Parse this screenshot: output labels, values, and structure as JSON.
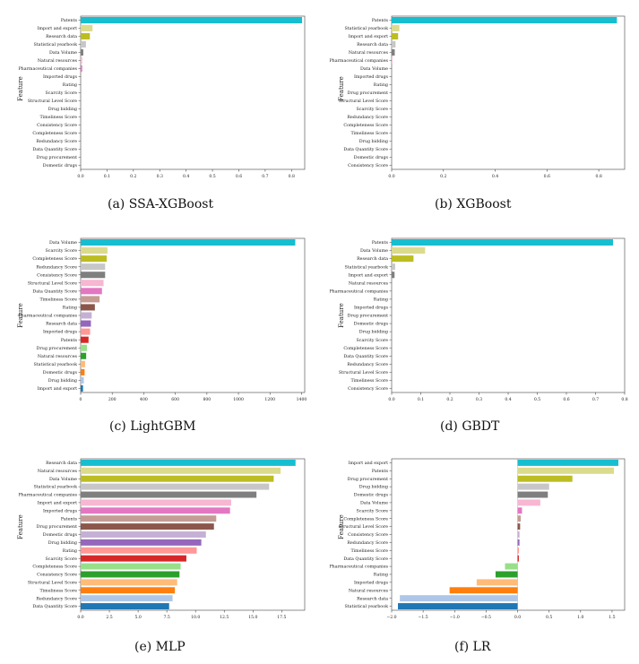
{
  "colors": {
    "cyan": "#17becf",
    "olive_light": "#dbdb8d",
    "olive": "#bcbd22",
    "grey_light": "#c7c7c7",
    "grey": "#7f7f7f",
    "pink_light": "#f7b6d2",
    "pink": "#e377c2",
    "brown_light": "#c49c94",
    "brown": "#8c564b",
    "purple_light": "#c5b0d5",
    "purple": "#9467bd",
    "red_light": "#ff9896",
    "red": "#d62728",
    "green_light": "#98df8a",
    "green": "#2ca02c",
    "orange_light": "#ffbb78",
    "orange": "#ff7f0e",
    "blue_light": "#aec7e8",
    "blue": "#1f77b4"
  },
  "chart_data": [
    {
      "id": "a",
      "type": "bar",
      "orientation": "horizontal",
      "caption": "(a) SSA-XGBoost",
      "ylabel": "Feature",
      "xlim": [
        0,
        0.85
      ],
      "xticks": [
        0.0,
        0.1,
        0.2,
        0.3,
        0.4,
        0.5,
        0.6,
        0.7,
        0.8
      ],
      "xtick_labels": [
        "0.0",
        "0.1",
        "0.2",
        "0.3",
        "0.4",
        "0.5",
        "0.6",
        "0.7",
        "0.8"
      ],
      "categories": [
        "Patents",
        "Import and export",
        "Research data",
        "Statistical yearbook",
        "Data Volume",
        "Natural resources",
        "Pharmaceutical companies",
        "Imported drugs",
        "Rating",
        "Scarcity Score",
        "Structural Level Score",
        "Drug bidding",
        "Timeliness Score",
        "Consistency Score",
        "Completeness Score",
        "Redundancy Score",
        "Data Quantity Score",
        "Drug procurement",
        "Domestic drugs"
      ],
      "values": [
        0.84,
        0.045,
        0.035,
        0.02,
        0.01,
        0.006,
        0.006,
        0,
        0,
        0,
        0,
        0,
        0,
        0,
        0,
        0,
        0,
        0,
        0
      ],
      "bar_colors": [
        "cyan",
        "olive_light",
        "olive",
        "grey_light",
        "grey",
        "pink_light",
        "pink",
        "brown_light",
        "brown",
        "purple_light",
        "purple",
        "red_light",
        "red",
        "green_light",
        "green",
        "orange_light",
        "orange",
        "blue_light",
        "blue"
      ]
    },
    {
      "id": "b",
      "type": "bar",
      "orientation": "horizontal",
      "caption": "(b) XGBoost",
      "ylabel": "Feature",
      "xlim": [
        0,
        0.9
      ],
      "xticks": [
        0.0,
        0.2,
        0.4,
        0.6,
        0.8
      ],
      "xtick_labels": [
        "0.0",
        "0.2",
        "0.4",
        "0.6",
        "0.8"
      ],
      "categories": [
        "Patents",
        "Statistical yearbook",
        "Import and export",
        "Research data",
        "Natural resources",
        "Pharmaceutical companies",
        "Data Volume",
        "Imported drugs",
        "Rating",
        "Drug procurement",
        "Structural Level Score",
        "Scarcity Score",
        "Redundancy Score",
        "Completeness Score",
        "Timeliness Score",
        "Drug bidding",
        "Data Quantity Score",
        "Domestic drugs",
        "Consistency Score"
      ],
      "values": [
        0.87,
        0.03,
        0.025,
        0.015,
        0.012,
        0.003,
        0,
        0,
        0,
        0,
        0,
        0,
        0,
        0,
        0,
        0,
        0,
        0,
        0
      ],
      "bar_colors": [
        "cyan",
        "olive_light",
        "olive",
        "grey_light",
        "grey",
        "pink_light",
        "pink",
        "brown_light",
        "brown",
        "purple_light",
        "purple",
        "red_light",
        "red",
        "green_light",
        "green",
        "orange_light",
        "orange",
        "blue_light",
        "blue"
      ]
    },
    {
      "id": "c",
      "type": "bar",
      "orientation": "horizontal",
      "caption": "(c) LightGBM",
      "ylabel": "Feature",
      "xlim": [
        0,
        1420
      ],
      "xticks": [
        0,
        200,
        400,
        600,
        800,
        1000,
        1200,
        1400
      ],
      "xtick_labels": [
        "0",
        "200",
        "400",
        "600",
        "800",
        "1000",
        "1200",
        "1400"
      ],
      "categories": [
        "Data Volume",
        "Scarcity Score",
        "Completeness Score",
        "Redundancy Score",
        "Consistency Score",
        "Structural Level Score",
        "Data Quantity Score",
        "Timeliness Score",
        "Rating",
        "Pharmaceutical companies",
        "Research data",
        "Imported drugs",
        "Patents",
        "Drug procurement",
        "Natural resources",
        "Statistical yearbook",
        "Domestic drugs",
        "Drug bidding",
        "Import and export"
      ],
      "values": [
        1360,
        170,
        165,
        155,
        155,
        145,
        135,
        120,
        90,
        70,
        65,
        60,
        50,
        40,
        35,
        28,
        25,
        20,
        15
      ],
      "bar_colors": [
        "cyan",
        "olive_light",
        "olive",
        "grey_light",
        "grey",
        "pink_light",
        "pink",
        "brown_light",
        "brown",
        "purple_light",
        "purple",
        "red_light",
        "red",
        "green_light",
        "green",
        "orange_light",
        "orange",
        "blue_light",
        "blue"
      ]
    },
    {
      "id": "d",
      "type": "bar",
      "orientation": "horizontal",
      "caption": "(d) GBDT",
      "ylabel": "Feature",
      "xlim": [
        0,
        0.8
      ],
      "xticks": [
        0.0,
        0.1,
        0.2,
        0.3,
        0.4,
        0.5,
        0.6,
        0.7,
        0.8
      ],
      "xtick_labels": [
        "0.0",
        "0.1",
        "0.2",
        "0.3",
        "0.4",
        "0.5",
        "0.6",
        "0.7",
        "0.8"
      ],
      "categories": [
        "Patents",
        "Data Volume",
        "Research data",
        "Statistical yearbook",
        "Import and export",
        "Natural resources",
        "Pharmaceutical companies",
        "Rating",
        "Imported drugs",
        "Drug procurement",
        "Domestic drugs",
        "Drug bidding",
        "Scarcity Score",
        "Completeness Score",
        "Data Quantity Score",
        "Redundancy Score",
        "Structural Level Score",
        "Timeliness Score",
        "Consistency Score"
      ],
      "values": [
        0.76,
        0.115,
        0.075,
        0.012,
        0.01,
        0,
        0,
        0,
        0,
        0,
        0,
        0,
        0,
        0,
        0,
        0,
        0,
        0,
        0
      ],
      "bar_colors": [
        "cyan",
        "olive_light",
        "olive",
        "grey_light",
        "grey",
        "pink_light",
        "pink",
        "brown_light",
        "brown",
        "purple_light",
        "purple",
        "red_light",
        "red",
        "green_light",
        "green",
        "orange_light",
        "orange",
        "blue_light",
        "blue"
      ]
    },
    {
      "id": "e",
      "type": "bar",
      "orientation": "horizontal",
      "caption": "(e) MLP",
      "ylabel": "Feature",
      "xlim": [
        0,
        19.5
      ],
      "xticks": [
        0.0,
        2.5,
        5.0,
        7.5,
        10.0,
        12.5,
        15.0,
        17.5
      ],
      "xtick_labels": [
        "0.0",
        "2.5",
        "5.0",
        "7.5",
        "10.0",
        "12.5",
        "15.0",
        "17.5"
      ],
      "categories": [
        "Research data",
        "Natural resources",
        "Data Volume",
        "Statistical yearbook",
        "Pharmaceutical companies",
        "Import and export",
        "Imported drugs",
        "Patents",
        "Drug procurement",
        "Domestic drugs",
        "Drug bidding",
        "Rating",
        "Scarcity Score",
        "Completeness Score",
        "Consistency Score",
        "Structural Level Score",
        "Timeliness Score",
        "Redundancy Score",
        "Data Quantity Score"
      ],
      "values": [
        18.7,
        17.4,
        16.8,
        16.4,
        15.3,
        13.1,
        13.0,
        11.8,
        11.6,
        10.9,
        10.5,
        10.1,
        9.2,
        8.7,
        8.6,
        8.4,
        8.2,
        8.0,
        7.7
      ],
      "bar_colors": [
        "cyan",
        "olive_light",
        "olive",
        "grey_light",
        "grey",
        "pink_light",
        "pink",
        "brown_light",
        "brown",
        "purple_light",
        "purple",
        "red_light",
        "red",
        "green_light",
        "green",
        "orange_light",
        "orange",
        "blue_light",
        "blue"
      ]
    },
    {
      "id": "f",
      "type": "bar",
      "orientation": "horizontal",
      "caption": "(f) LR",
      "ylabel": "Feature",
      "xlim": [
        -2.0,
        1.7
      ],
      "xticks": [
        -2.0,
        -1.5,
        -1.0,
        -0.5,
        0.0,
        0.5,
        1.0,
        1.5
      ],
      "xtick_labels": [
        "−2.0",
        "−1.5",
        "−1.0",
        "−0.5",
        "0.0",
        "0.5",
        "1.0",
        "1.5"
      ],
      "categories": [
        "Import and export",
        "Patents",
        "Drug procurement",
        "Drug bidding",
        "Domestic drugs",
        "Data Volume",
        "Scarcity Score",
        "Completeness Score",
        "Structural Level Score",
        "Consistency Score",
        "Redundancy Score",
        "Timeliness Score",
        "Data Quantity Score",
        "Pharmaceutical companies",
        "Rating",
        "Imported drugs",
        "Natural resources",
        "Research data",
        "Statistical yearbook"
      ],
      "values": [
        1.6,
        1.53,
        0.87,
        0.5,
        0.48,
        0.36,
        0.07,
        0.05,
        0.04,
        0.03,
        0.03,
        0.02,
        0.02,
        -0.2,
        -0.35,
        -0.65,
        -1.08,
        -1.87,
        -1.9
      ],
      "bar_colors": [
        "cyan",
        "olive_light",
        "olive",
        "grey_light",
        "grey",
        "pink_light",
        "pink",
        "brown_light",
        "brown",
        "purple_light",
        "purple",
        "red_light",
        "red",
        "green_light",
        "green",
        "orange_light",
        "orange",
        "blue_light",
        "blue"
      ]
    }
  ]
}
